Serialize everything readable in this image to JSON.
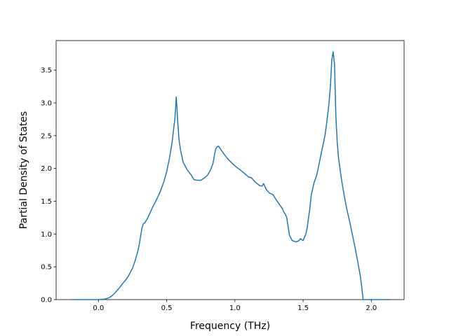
{
  "chart_data": {
    "type": "line",
    "title": "",
    "xlabel": "Frequency (THz)",
    "ylabel": "Partial Density of States",
    "xlim": [
      -0.31,
      2.24
    ],
    "ylim": [
      0.0,
      3.95
    ],
    "xticks": [
      0.0,
      0.5,
      1.0,
      1.5,
      2.0
    ],
    "xtick_labels": [
      "0.0",
      "0.5",
      "1.0",
      "1.5",
      "2.0"
    ],
    "yticks": [
      0.0,
      0.5,
      1.0,
      1.5,
      2.0,
      2.5,
      3.0,
      3.5
    ],
    "ytick_labels": [
      "0.0",
      "0.5",
      "1.0",
      "1.5",
      "2.0",
      "2.5",
      "3.0",
      "3.5"
    ],
    "grid": false,
    "color": "#1f77b4",
    "series": [
      {
        "x": [
          -0.2,
          -0.1,
          0.0,
          0.05,
          0.08,
          0.1,
          0.12,
          0.15,
          0.18,
          0.2,
          0.22,
          0.25,
          0.27,
          0.29,
          0.3,
          0.31,
          0.32,
          0.33,
          0.34,
          0.36,
          0.38,
          0.4,
          0.42,
          0.45,
          0.48,
          0.5,
          0.52,
          0.54,
          0.55,
          0.56,
          0.565,
          0.57,
          0.575,
          0.58,
          0.59,
          0.6,
          0.62,
          0.65,
          0.68,
          0.7,
          0.72,
          0.75,
          0.78,
          0.8,
          0.82,
          0.84,
          0.85,
          0.86,
          0.87,
          0.88,
          0.9,
          0.92,
          0.95,
          1.0,
          1.05,
          1.1,
          1.12,
          1.15,
          1.18,
          1.2,
          1.21,
          1.23,
          1.25,
          1.28,
          1.3,
          1.32,
          1.35,
          1.36,
          1.37,
          1.38,
          1.4,
          1.42,
          1.45,
          1.47,
          1.48,
          1.5,
          1.52,
          1.53,
          1.54,
          1.55,
          1.56,
          1.58,
          1.6,
          1.62,
          1.64,
          1.66,
          1.67,
          1.68,
          1.69,
          1.7,
          1.71,
          1.72,
          1.73,
          1.735,
          1.74,
          1.75,
          1.76,
          1.78,
          1.8,
          1.82,
          1.84,
          1.86,
          1.88,
          1.9,
          1.92,
          1.93,
          1.94,
          1.95,
          2.0,
          2.05,
          2.1,
          2.14
        ],
        "y": [
          0.0,
          0.0,
          0.0,
          0.01,
          0.03,
          0.06,
          0.1,
          0.17,
          0.25,
          0.3,
          0.36,
          0.48,
          0.6,
          0.75,
          0.85,
          0.98,
          1.1,
          1.16,
          1.17,
          1.24,
          1.33,
          1.42,
          1.5,
          1.63,
          1.8,
          1.95,
          2.15,
          2.4,
          2.58,
          2.75,
          2.9,
          3.09,
          2.95,
          2.75,
          2.45,
          2.3,
          2.1,
          1.98,
          1.9,
          1.83,
          1.82,
          1.82,
          1.86,
          1.9,
          1.97,
          2.08,
          2.2,
          2.3,
          2.33,
          2.34,
          2.28,
          2.22,
          2.14,
          2.04,
          1.96,
          1.87,
          1.86,
          1.79,
          1.74,
          1.73,
          1.77,
          1.68,
          1.63,
          1.6,
          1.53,
          1.47,
          1.38,
          1.33,
          1.3,
          1.25,
          0.98,
          0.9,
          0.88,
          0.9,
          0.93,
          0.9,
          1.0,
          1.1,
          1.25,
          1.4,
          1.6,
          1.78,
          1.9,
          2.1,
          2.3,
          2.5,
          2.65,
          2.82,
          3.0,
          3.25,
          3.65,
          3.78,
          3.6,
          3.2,
          2.8,
          2.4,
          2.15,
          1.85,
          1.6,
          1.38,
          1.2,
          1.0,
          0.8,
          0.58,
          0.35,
          0.18,
          0.0,
          0.0,
          0.0,
          0.0,
          0.0,
          0.0
        ]
      }
    ]
  }
}
